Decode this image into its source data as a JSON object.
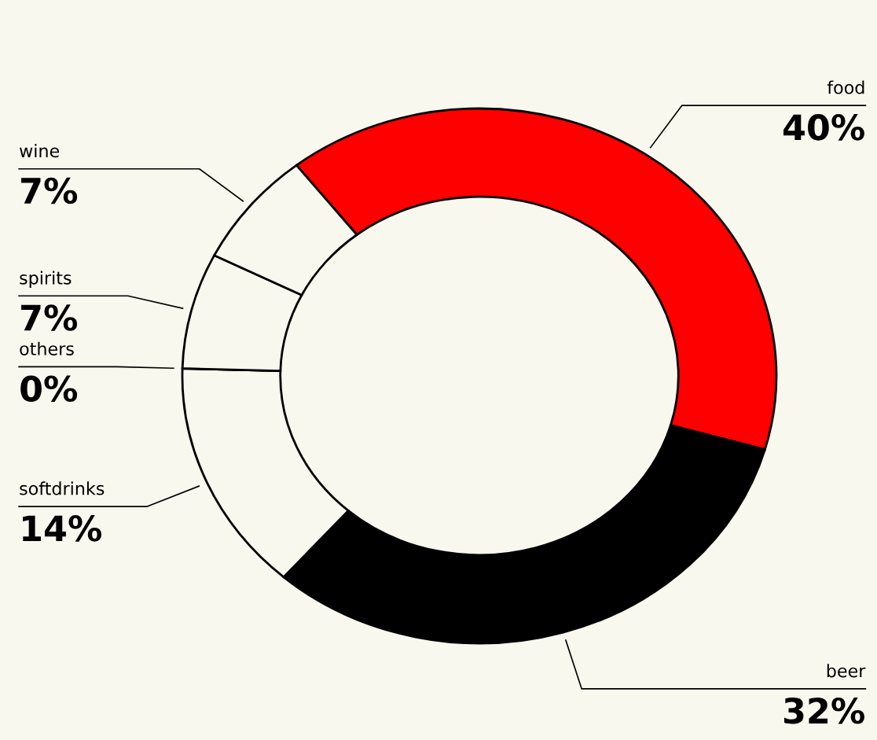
{
  "chart_data": {
    "type": "donut",
    "categories": [
      "food",
      "beer",
      "softdrinks",
      "others",
      "spirits",
      "wine"
    ],
    "values": [
      40,
      32,
      14,
      0,
      7,
      7
    ],
    "colors": [
      "#ff0000",
      "#000000",
      "#f8f8ef",
      "#f8f8ef",
      "#f8f8ef",
      "#f8f8ef"
    ],
    "value_labels": [
      "40%",
      "32%",
      "14%",
      "0%",
      "7%",
      "7%"
    ],
    "legend": false
  }
}
